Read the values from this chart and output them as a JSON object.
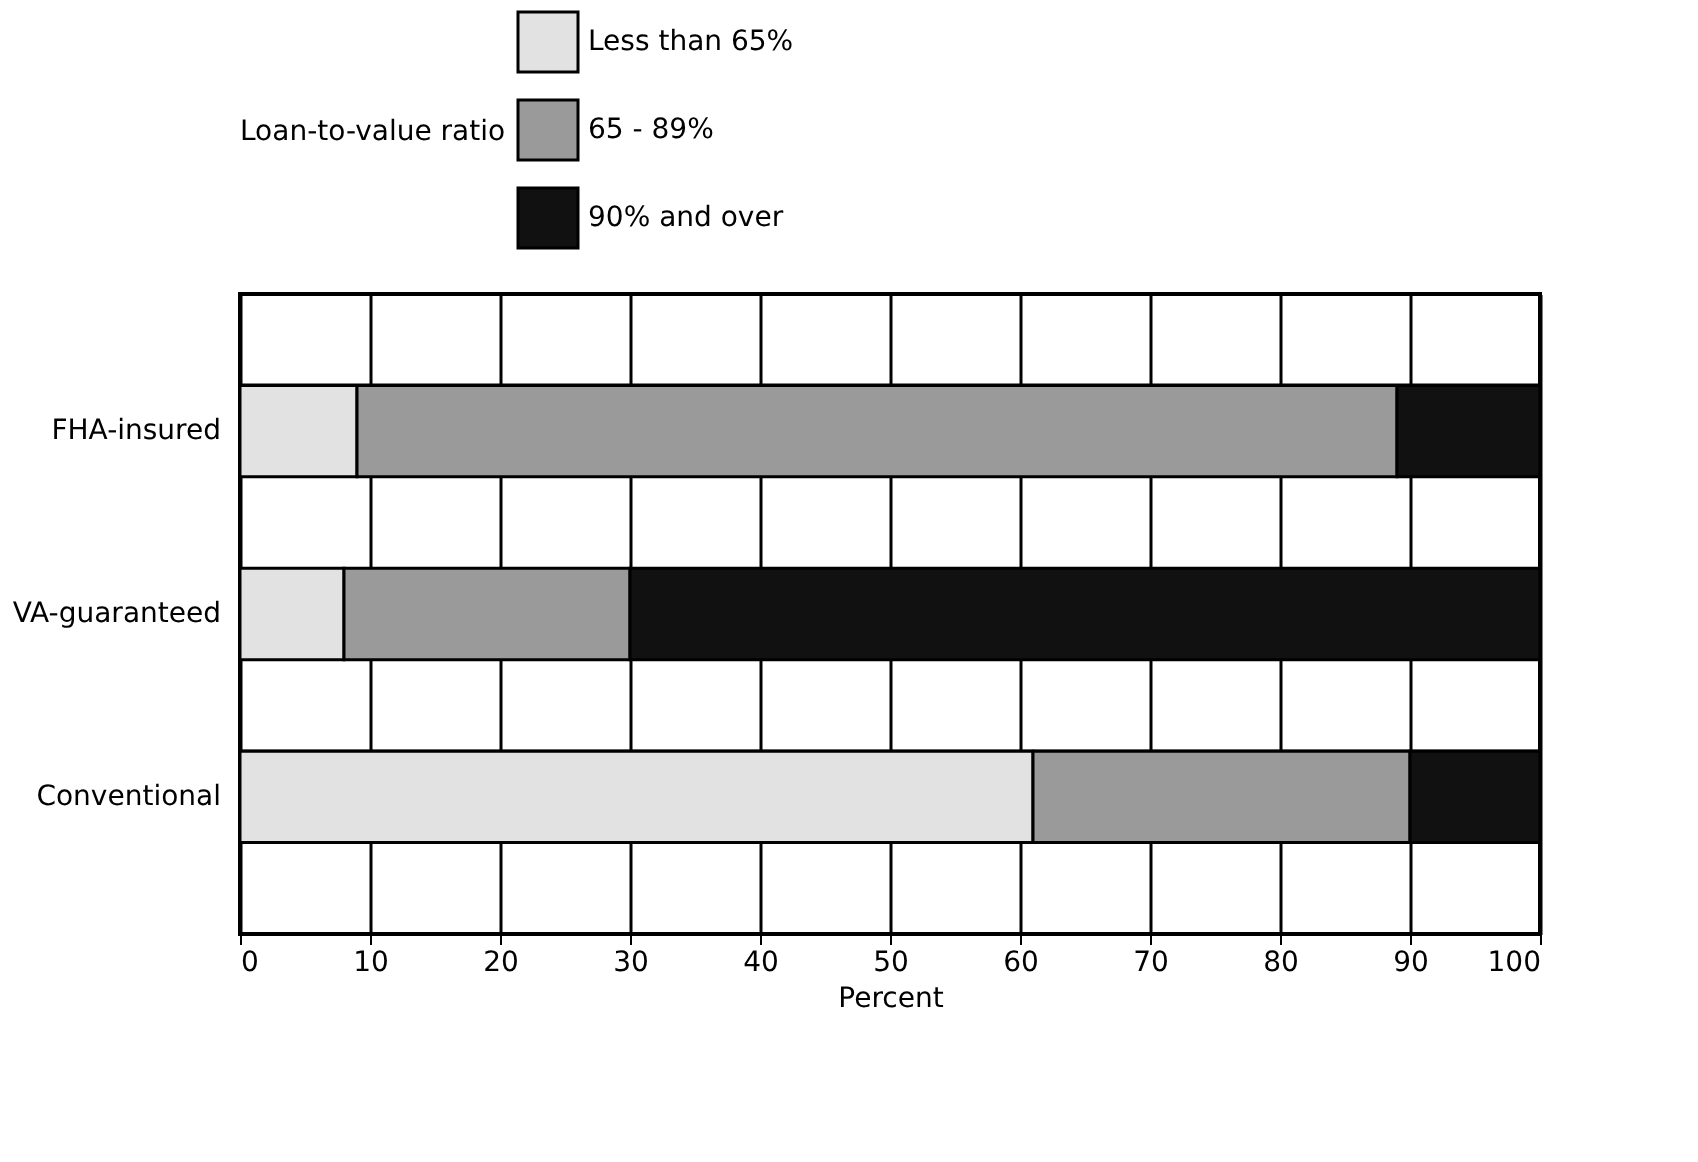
{
  "chart_data": {
    "type": "bar",
    "orientation": "horizontal",
    "stacked": true,
    "xlabel": "Percent",
    "legend_title": "Loan-to-value ratio",
    "categories": [
      "FHA-insured",
      "VA-guaranteed",
      "Conventional"
    ],
    "series": [
      {
        "name": "Less than 65%",
        "color": "#e2e2e2",
        "values": [
          9,
          8,
          61
        ]
      },
      {
        "name": "65 - 89%",
        "color": "#9a9a9a",
        "values": [
          80,
          22,
          29
        ]
      },
      {
        "name": "90% and over",
        "color": "#111111",
        "values": [
          11,
          70,
          10
        ]
      }
    ],
    "xlim": [
      0,
      100
    ],
    "xticks": [
      0,
      10,
      20,
      30,
      40,
      50,
      60,
      70,
      80,
      90,
      100
    ],
    "grid": true,
    "legend": "top"
  }
}
